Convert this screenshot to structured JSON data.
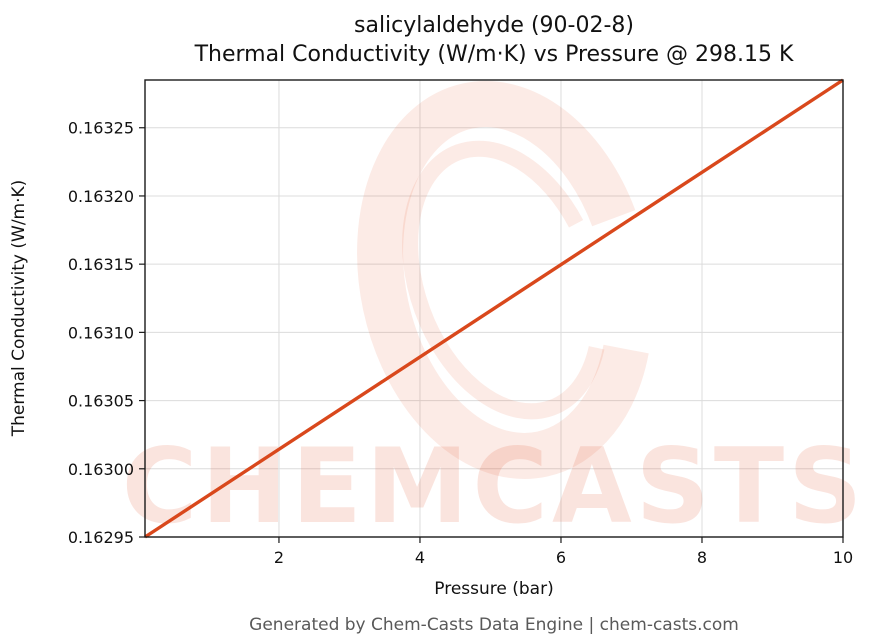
{
  "chart_data": {
    "type": "line",
    "title": "salicylaldehyde (90-02-8)",
    "subtitle": "Thermal Conductivity (W/m·K) vs Pressure @ 298.15 K",
    "xlabel": "Pressure (bar)",
    "ylabel": "Thermal Conductivity (W/m·K)",
    "x": [
      0.1,
      10
    ],
    "y": [
      0.16295,
      0.163285
    ],
    "xlim": [
      0.1,
      10
    ],
    "ylim": [
      0.16295,
      0.163285
    ],
    "x_ticks": [
      2,
      4,
      6,
      8,
      10
    ],
    "x_tick_labels": [
      "2",
      "4",
      "6",
      "8",
      "10"
    ],
    "y_ticks": [
      0.16295,
      0.163,
      0.16305,
      0.1631,
      0.16315,
      0.1632,
      0.16325
    ],
    "y_tick_labels": [
      "0.16295",
      "0.16300",
      "0.16305",
      "0.16310",
      "0.16315",
      "0.16320",
      "0.16325"
    ],
    "line_color": "#d9481c",
    "grid": true,
    "legend": "none"
  },
  "watermark": {
    "text": "CHEMCASTS"
  },
  "footer": {
    "text": "Generated by Chem-Casts Data Engine | chem-casts.com"
  }
}
